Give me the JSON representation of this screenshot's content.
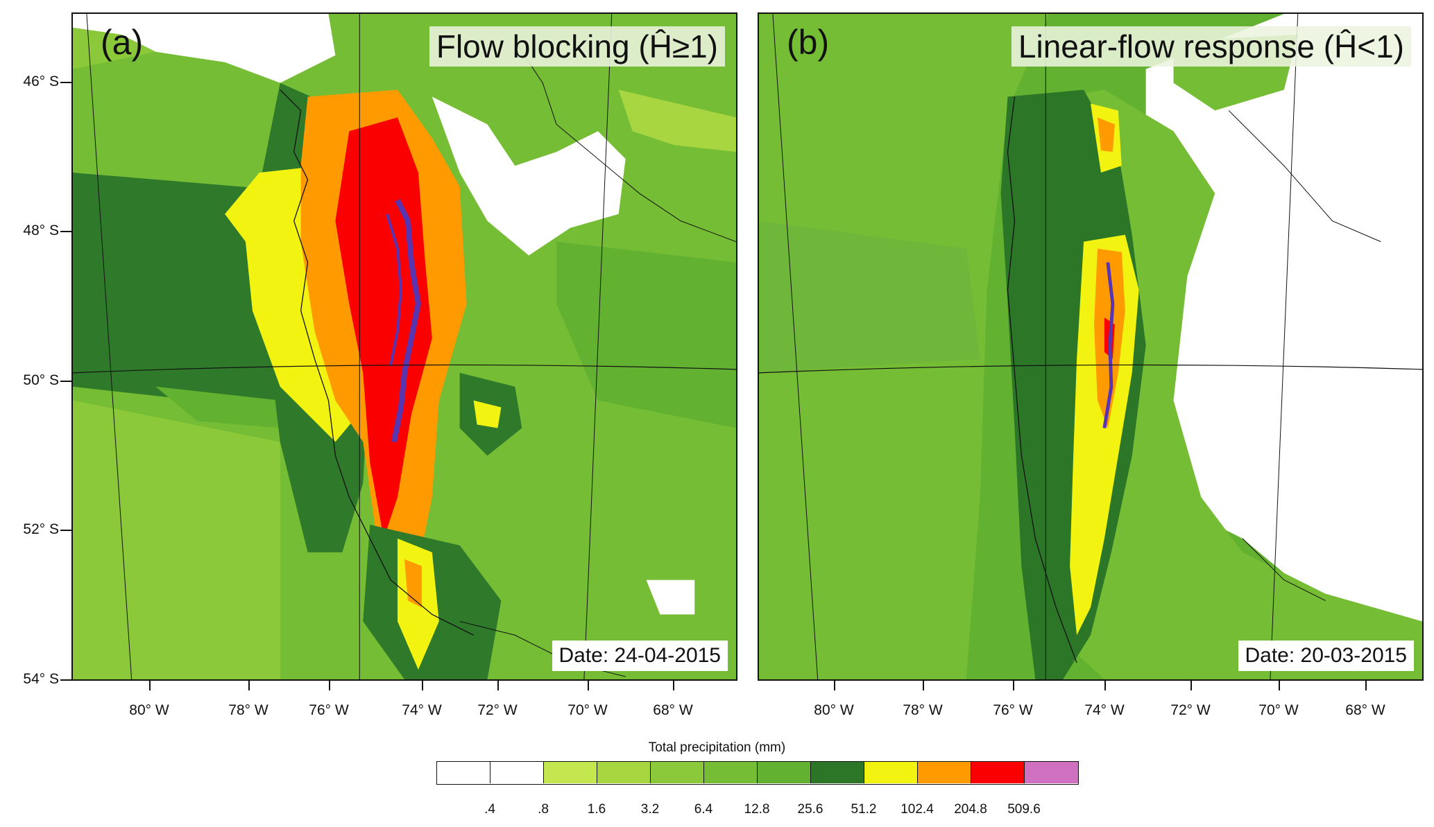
{
  "panels": [
    {
      "letter": "(a)",
      "title": "Flow blocking (Ĥ≥1)",
      "date": "Date: 24-04-2015"
    },
    {
      "letter": "(b)",
      "title": "Linear-flow response (Ĥ<1)",
      "date": "Date: 20-03-2015"
    }
  ],
  "lat_labels": [
    "46° S",
    "48° S",
    "50° S",
    "52° S",
    "54° S"
  ],
  "lon_labels": [
    "80° W",
    "78° W",
    "76° W",
    "74° W",
    "72° W",
    "70° W",
    "68° W"
  ],
  "legend": {
    "title": "Total precipitation (mm)",
    "colors": [
      "#ffffff",
      "#ffffff",
      "#c4e64f",
      "#a8d640",
      "#8bc83a",
      "#74bd34",
      "#63b130",
      "#2b7627",
      "#f3f312",
      "#ff9a00",
      "#fb0000",
      "#d070c0"
    ],
    "labels": [
      ".4",
      ".8",
      "1.6",
      "3.2",
      "6.4",
      "12.8",
      "25.6",
      "51.2",
      "102.4",
      "204.8",
      "509.6"
    ]
  },
  "map_colors": {
    "ocean_a_dark": "#2f7a2a",
    "ocean_a_mid": "#6fb73a",
    "ocean_b": "#56a52f",
    "land_light": "#a8d640",
    "dry_white": "#ffffff",
    "yellow": "#f3f312",
    "orange": "#ff9a00",
    "red": "#fb0000",
    "purple_contour": "#5a35b0"
  }
}
